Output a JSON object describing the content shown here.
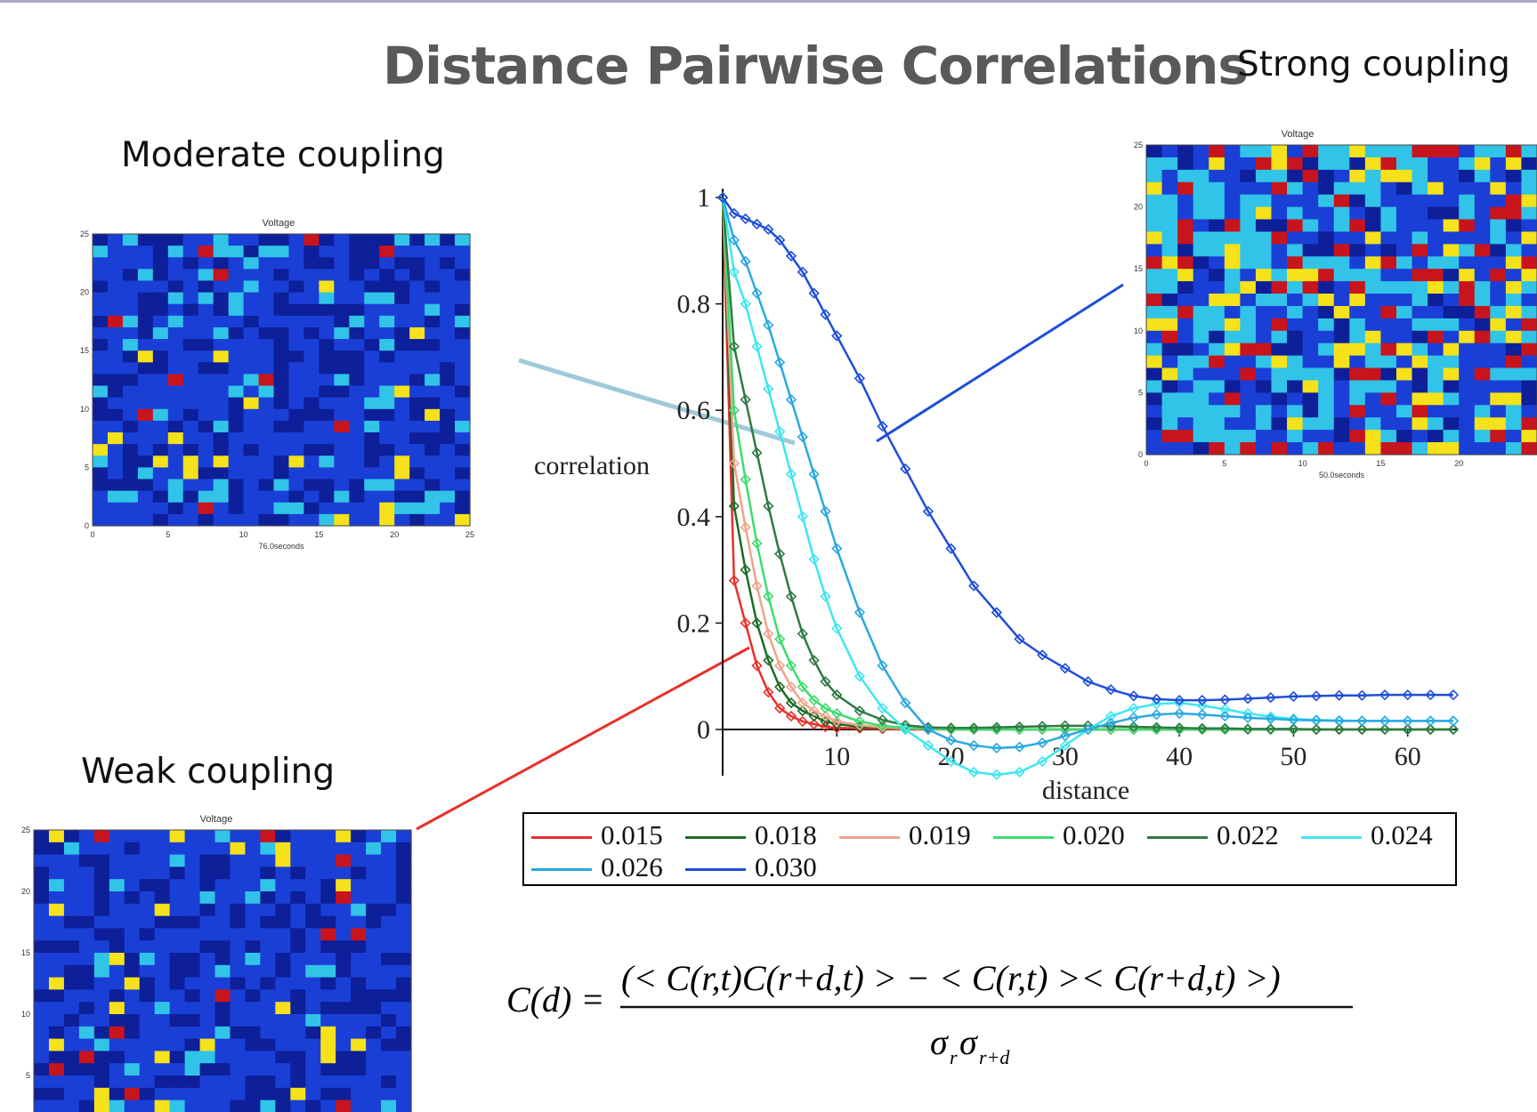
{
  "slide": {
    "title": "Distance Pairwise Correlations",
    "labels": {
      "strong": "Strong coupling",
      "moderate": "Moderate coupling",
      "weak": "Weak coupling"
    },
    "formula": {
      "lhs": "C(d) =",
      "numerator": "(< C(r,t)C(r+d,t) > − < C(r,t) >< C(r+d,t) >)",
      "denominator": "σ",
      "denominator_sub1": "r",
      "denominator_sub2": "r+d"
    }
  },
  "heatmaps": {
    "strong": {
      "title": "Voltage",
      "xlabel": "50.0seconds",
      "xticks": [
        "0",
        "5",
        "10",
        "15",
        "20"
      ],
      "yticks": [
        "0",
        "5",
        "10",
        "15",
        "20",
        "25"
      ]
    },
    "moderate": {
      "title": "Voltage",
      "xlabel": "76.0seconds",
      "xticks": [
        "0",
        "5",
        "10",
        "15",
        "20",
        "25"
      ],
      "yticks": [
        "0",
        "5",
        "10",
        "15",
        "20",
        "25"
      ]
    },
    "weak": {
      "title": "Voltage",
      "xlabel": "",
      "xticks": [],
      "yticks": [
        "5",
        "10",
        "15",
        "20",
        "25"
      ]
    }
  },
  "colors": {
    "heat_bg": "#1a3fd6",
    "heat_dark": "#0d1f99",
    "heat_cyan": "#31c4e8",
    "heat_yellow": "#f5e21a",
    "heat_red": "#c8141c",
    "moderate_pointer": "#9fc9d8",
    "strong_pointer": "#1f4ed8",
    "weak_pointer": "#e8302a"
  },
  "chart_data": {
    "type": "line",
    "xlabel": "distance",
    "ylabel": "correlation",
    "xlim": [
      0,
      64
    ],
    "ylim": [
      -0.1,
      1.0
    ],
    "xticks": [
      10,
      20,
      30,
      40,
      50,
      60
    ],
    "yticks": [
      0,
      0.2,
      0.4,
      0.6,
      0.8,
      1
    ],
    "x": [
      0,
      1,
      2,
      3,
      4,
      5,
      6,
      7,
      8,
      9,
      10,
      12,
      14,
      16,
      18,
      20,
      22,
      24,
      26,
      28,
      30,
      32,
      34,
      36,
      38,
      40,
      42,
      44,
      46,
      48,
      50,
      52,
      54,
      56,
      58,
      60,
      62,
      64
    ],
    "series": [
      {
        "name": "0.015",
        "color": "#e8302a",
        "values": [
          1.0,
          0.28,
          0.2,
          0.12,
          0.07,
          0.04,
          0.025,
          0.015,
          0.01,
          0.005,
          0.003,
          0.002,
          0.001,
          0,
          0,
          0,
          0,
          0,
          0,
          0,
          0,
          0,
          0,
          0,
          0,
          0,
          0,
          0,
          0,
          0,
          0,
          0,
          0,
          0,
          0,
          0,
          0,
          0
        ]
      },
      {
        "name": "0.018",
        "color": "#1d6b26",
        "values": [
          1.0,
          0.42,
          0.3,
          0.2,
          0.13,
          0.08,
          0.05,
          0.035,
          0.025,
          0.015,
          0.01,
          0.005,
          0.003,
          0.002,
          0.001,
          0,
          0,
          0,
          0,
          0,
          0,
          0,
          0,
          0,
          0,
          0,
          0,
          0,
          0,
          0,
          0,
          0,
          0,
          0,
          0,
          0,
          0,
          0
        ]
      },
      {
        "name": "0.019",
        "color": "#f2a38b",
        "values": [
          1.0,
          0.5,
          0.38,
          0.27,
          0.18,
          0.12,
          0.08,
          0.05,
          0.035,
          0.025,
          0.015,
          0.008,
          0.004,
          0.002,
          0.001,
          0,
          0,
          0,
          0,
          0,
          0,
          0,
          0,
          0,
          0,
          0,
          0,
          0,
          0,
          0,
          0,
          0,
          0,
          0,
          0,
          0,
          0,
          0
        ]
      },
      {
        "name": "0.020",
        "color": "#3ddc6e",
        "values": [
          1.0,
          0.6,
          0.47,
          0.35,
          0.25,
          0.17,
          0.12,
          0.08,
          0.055,
          0.04,
          0.03,
          0.015,
          0.007,
          0.003,
          0.001,
          0,
          0,
          0,
          0,
          0,
          0,
          0,
          0,
          0,
          0,
          0,
          0,
          0,
          0,
          0,
          0,
          0,
          0,
          0,
          0,
          0,
          0,
          0
        ]
      },
      {
        "name": "0.022",
        "color": "#2f7a44",
        "values": [
          1.0,
          0.72,
          0.62,
          0.52,
          0.42,
          0.33,
          0.25,
          0.18,
          0.13,
          0.09,
          0.065,
          0.035,
          0.018,
          0.008,
          0.004,
          0.003,
          0.003,
          0.004,
          0.005,
          0.006,
          0.007,
          0.007,
          0.006,
          0.005,
          0.004,
          0.003,
          0.002,
          0.002,
          0.001,
          0.001,
          0.001,
          0,
          0,
          0,
          0,
          0,
          0,
          0
        ]
      },
      {
        "name": "0.024",
        "color": "#3ee6f0",
        "values": [
          1.0,
          0.86,
          0.8,
          0.72,
          0.64,
          0.56,
          0.48,
          0.4,
          0.32,
          0.25,
          0.19,
          0.1,
          0.04,
          0.0,
          -0.03,
          -0.06,
          -0.08,
          -0.085,
          -0.08,
          -0.06,
          -0.03,
          0.0,
          0.025,
          0.04,
          0.048,
          0.05,
          0.045,
          0.038,
          0.03,
          0.024,
          0.02,
          0.018,
          0.017,
          0.016,
          0.016,
          0.016,
          0.016,
          0.016
        ]
      },
      {
        "name": "0.026",
        "color": "#2aa8e0",
        "values": [
          1.0,
          0.92,
          0.88,
          0.82,
          0.76,
          0.69,
          0.62,
          0.55,
          0.48,
          0.41,
          0.34,
          0.22,
          0.12,
          0.05,
          0.0,
          -0.02,
          -0.03,
          -0.035,
          -0.033,
          -0.025,
          -0.012,
          0.0,
          0.012,
          0.022,
          0.028,
          0.03,
          0.028,
          0.025,
          0.022,
          0.02,
          0.018,
          0.017,
          0.016,
          0.016,
          0.016,
          0.016,
          0.016,
          0.016
        ]
      },
      {
        "name": "0.030",
        "color": "#1f4ed8",
        "values": [
          1.0,
          0.97,
          0.96,
          0.95,
          0.94,
          0.92,
          0.89,
          0.86,
          0.82,
          0.78,
          0.74,
          0.66,
          0.57,
          0.49,
          0.41,
          0.34,
          0.27,
          0.22,
          0.17,
          0.14,
          0.115,
          0.09,
          0.075,
          0.063,
          0.057,
          0.055,
          0.055,
          0.056,
          0.058,
          0.06,
          0.062,
          0.063,
          0.064,
          0.064,
          0.065,
          0.065,
          0.065,
          0.065
        ]
      }
    ],
    "legend": {
      "position": "bottom",
      "columns": 6
    }
  }
}
